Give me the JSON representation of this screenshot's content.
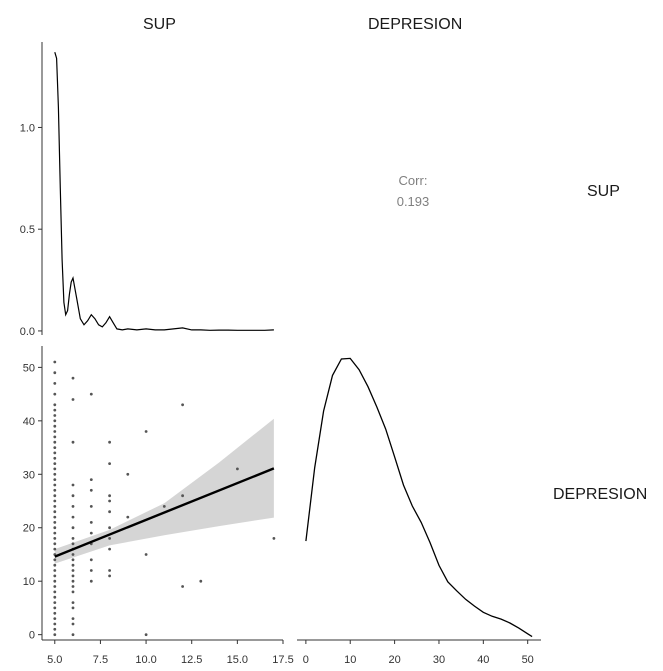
{
  "facet_labels": {
    "columns": [
      "SUP",
      "DEPRESION"
    ],
    "rows": [
      "SUP",
      "DEPRESION"
    ]
  },
  "colors": {
    "line": "#000000",
    "point": "#555555",
    "ribbon": "#d3d3d3",
    "axis": "#333333",
    "corr_text": "#808080"
  },
  "chart_data": [
    {
      "panel": "SUP-density",
      "type": "line",
      "xlabel": "",
      "ylabel": "",
      "xlim": [
        4.3,
        17.5
      ],
      "ylim": [
        -0.02,
        1.42
      ],
      "yticks": [
        0.0,
        0.5,
        1.0
      ],
      "ytick_labels": [
        "0.0",
        "0.5",
        "1.0"
      ],
      "x": [
        5.0,
        5.1,
        5.2,
        5.3,
        5.4,
        5.5,
        5.6,
        5.7,
        5.8,
        5.9,
        6.0,
        6.2,
        6.4,
        6.6,
        6.8,
        7.0,
        7.2,
        7.4,
        7.6,
        7.8,
        8.0,
        8.2,
        8.4,
        8.7,
        9.0,
        9.5,
        10.0,
        10.5,
        11.0,
        11.5,
        12.0,
        12.5,
        13.0,
        13.5,
        14.0,
        14.5,
        15.0,
        15.5,
        16.0,
        16.5,
        17.0
      ],
      "y": [
        1.37,
        1.34,
        1.1,
        0.7,
        0.35,
        0.14,
        0.08,
        0.1,
        0.18,
        0.24,
        0.26,
        0.16,
        0.06,
        0.03,
        0.05,
        0.08,
        0.06,
        0.03,
        0.02,
        0.04,
        0.07,
        0.04,
        0.01,
        0.005,
        0.01,
        0.005,
        0.01,
        0.005,
        0.005,
        0.01,
        0.015,
        0.005,
        0.005,
        0.003,
        0.004,
        0.004,
        0.003,
        0.003,
        0.003,
        0.003,
        0.005
      ]
    },
    {
      "panel": "correlation",
      "type": "table",
      "label": "Corr:",
      "value": "0.193"
    },
    {
      "panel": "DEPRESION-vs-SUP",
      "type": "scatter",
      "xlabel": "",
      "ylabel": "",
      "xlim": [
        4.3,
        17.5
      ],
      "ylim": [
        -1,
        54
      ],
      "xticks": [
        5.0,
        7.5,
        10.0,
        12.5,
        15.0,
        17.5
      ],
      "xtick_labels": [
        "5.0",
        "7.5",
        "10.0",
        "12.5",
        "15.0",
        "17.5"
      ],
      "yticks": [
        0,
        10,
        20,
        30,
        40,
        50
      ],
      "ytick_labels": [
        "0",
        "10",
        "20",
        "30",
        "40",
        "50"
      ],
      "points": [
        [
          5,
          0
        ],
        [
          5,
          1
        ],
        [
          5,
          2
        ],
        [
          5,
          3
        ],
        [
          5,
          4
        ],
        [
          5,
          5
        ],
        [
          5,
          6
        ],
        [
          5,
          7
        ],
        [
          5,
          8
        ],
        [
          5,
          9
        ],
        [
          5,
          10
        ],
        [
          5,
          11
        ],
        [
          5,
          12
        ],
        [
          5,
          13
        ],
        [
          5,
          14
        ],
        [
          5,
          15
        ],
        [
          5,
          16
        ],
        [
          5,
          17
        ],
        [
          5,
          18
        ],
        [
          5,
          19
        ],
        [
          5,
          20
        ],
        [
          5,
          21
        ],
        [
          5,
          22
        ],
        [
          5,
          23
        ],
        [
          5,
          24
        ],
        [
          5,
          25
        ],
        [
          5,
          26
        ],
        [
          5,
          27
        ],
        [
          5,
          28
        ],
        [
          5,
          29
        ],
        [
          5,
          30
        ],
        [
          5,
          31
        ],
        [
          5,
          32
        ],
        [
          5,
          33
        ],
        [
          5,
          34
        ],
        [
          5,
          35
        ],
        [
          5,
          36
        ],
        [
          5,
          37
        ],
        [
          5,
          38
        ],
        [
          5,
          39
        ],
        [
          5,
          40
        ],
        [
          5,
          41
        ],
        [
          5,
          42
        ],
        [
          5,
          43
        ],
        [
          5,
          45
        ],
        [
          5,
          47
        ],
        [
          5,
          49
        ],
        [
          5,
          51
        ],
        [
          6,
          0
        ],
        [
          6,
          2
        ],
        [
          6,
          3
        ],
        [
          6,
          5
        ],
        [
          6,
          6
        ],
        [
          6,
          8
        ],
        [
          6,
          9
        ],
        [
          6,
          10
        ],
        [
          6,
          11
        ],
        [
          6,
          12
        ],
        [
          6,
          13
        ],
        [
          6,
          14
        ],
        [
          6,
          15
        ],
        [
          6,
          16
        ],
        [
          6,
          17
        ],
        [
          6,
          18
        ],
        [
          6,
          20
        ],
        [
          6,
          22
        ],
        [
          6,
          24
        ],
        [
          6,
          26
        ],
        [
          6,
          28
        ],
        [
          6,
          36
        ],
        [
          6,
          44
        ],
        [
          6,
          48
        ],
        [
          7,
          10
        ],
        [
          7,
          12
        ],
        [
          7,
          14
        ],
        [
          7,
          17
        ],
        [
          7,
          19
        ],
        [
          7,
          21
        ],
        [
          7,
          24
        ],
        [
          7,
          27
        ],
        [
          7,
          29
        ],
        [
          7,
          45
        ],
        [
          8,
          11
        ],
        [
          8,
          12
        ],
        [
          8,
          16
        ],
        [
          8,
          18
        ],
        [
          8,
          20
        ],
        [
          8,
          23
        ],
        [
          8,
          25
        ],
        [
          8,
          26
        ],
        [
          8,
          32
        ],
        [
          8,
          36
        ],
        [
          9,
          22
        ],
        [
          9,
          30
        ],
        [
          10,
          0
        ],
        [
          10,
          15
        ],
        [
          10,
          38
        ],
        [
          11,
          24
        ],
        [
          12,
          9
        ],
        [
          12,
          26
        ],
        [
          12,
          43
        ],
        [
          13,
          10
        ],
        [
          15,
          31
        ],
        [
          17,
          18
        ]
      ],
      "fit_line": {
        "x": [
          5,
          17
        ],
        "y": [
          14.6,
          31.1
        ]
      },
      "ribbon": {
        "x": [
          5,
          8,
          11,
          14,
          17
        ],
        "lower": [
          13.3,
          16.7,
          18.6,
          20.3,
          21.9
        ],
        "upper": [
          16.0,
          19.6,
          24.6,
          32.2,
          40.4
        ]
      }
    },
    {
      "panel": "DEPRESION-density",
      "type": "line",
      "xlabel": "",
      "ylabel": "",
      "xlim": [
        -2,
        53
      ],
      "ylim": [
        0,
        0.052
      ],
      "xticks": [
        0,
        10,
        20,
        30,
        40,
        50
      ],
      "xtick_labels": [
        "0",
        "10",
        "20",
        "30",
        "40",
        "50"
      ],
      "x": [
        0,
        2,
        4,
        6,
        8,
        10,
        12,
        14,
        16,
        18,
        20,
        22,
        24,
        26,
        28,
        30,
        32,
        34,
        36,
        38,
        40,
        42,
        44,
        46,
        48,
        50,
        51
      ],
      "y": [
        0.0175,
        0.0305,
        0.0405,
        0.0468,
        0.0497,
        0.0498,
        0.0478,
        0.0448,
        0.0412,
        0.0373,
        0.0324,
        0.0274,
        0.0237,
        0.0208,
        0.0172,
        0.0132,
        0.0103,
        0.0087,
        0.0072,
        0.006,
        0.0049,
        0.0042,
        0.0037,
        0.003,
        0.0021,
        0.0011,
        0.0006
      ]
    }
  ]
}
